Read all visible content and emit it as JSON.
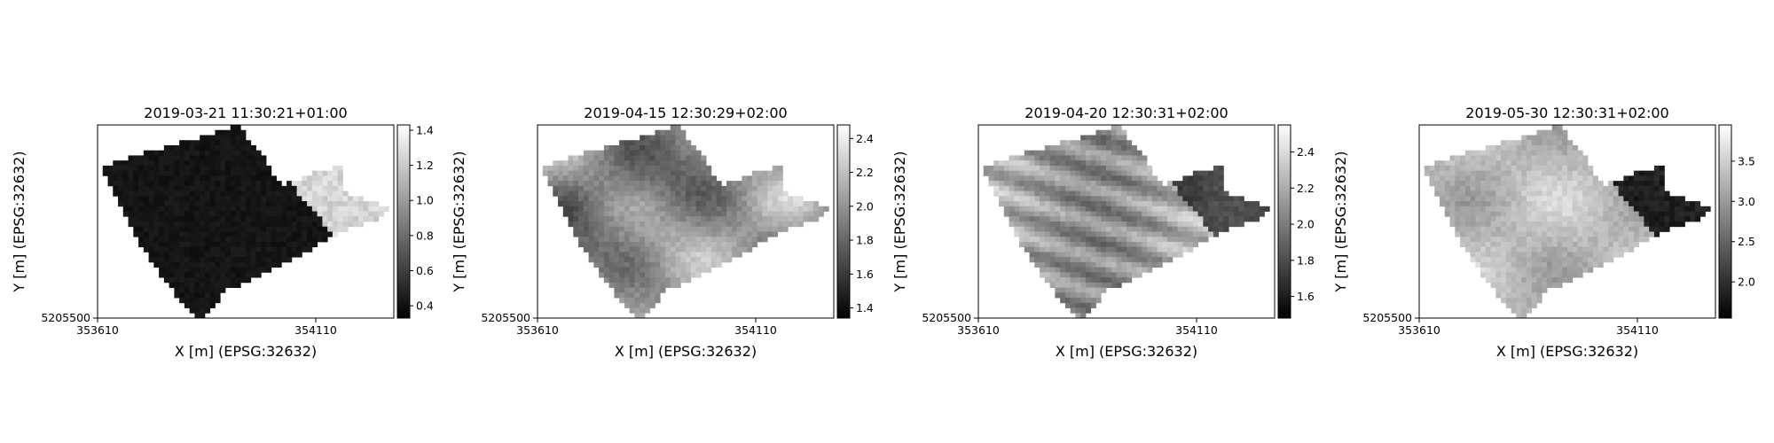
{
  "figure": {
    "panels": [
      {
        "title": "2019-03-21 11:30:21+01:00",
        "xlabel": "X [m] (EPSG:32632)",
        "ylabel": "Y [m] (EPSG:32632)",
        "xticks": [
          "353610",
          "354110"
        ],
        "yticks": [
          "5205500"
        ],
        "colorbar_ticks": [
          "0.4",
          "0.6",
          "0.8",
          "1.0",
          "1.2",
          "1.4"
        ]
      },
      {
        "title": "2019-04-15 12:30:29+02:00",
        "xlabel": "X [m] (EPSG:32632)",
        "ylabel": "Y [m] (EPSG:32632)",
        "xticks": [
          "353610",
          "354110"
        ],
        "yticks": [
          "5205500"
        ],
        "colorbar_ticks": [
          "1.4",
          "1.6",
          "1.8",
          "2.0",
          "2.2",
          "2.4"
        ]
      },
      {
        "title": "2019-04-20 12:30:31+02:00",
        "xlabel": "X [m] (EPSG:32632)",
        "ylabel": "Y [m] (EPSG:32632)",
        "xticks": [
          "353610",
          "354110"
        ],
        "yticks": [
          "5205500"
        ],
        "colorbar_ticks": [
          "1.6",
          "1.8",
          "2.0",
          "2.2",
          "2.4"
        ]
      },
      {
        "title": "2019-05-30 12:30:31+02:00",
        "xlabel": "X [m] (EPSG:32632)",
        "ylabel": "Y [m] (EPSG:32632)",
        "xticks": [
          "353610",
          "354110"
        ],
        "yticks": [
          "5205500"
        ],
        "colorbar_ticks": [
          "2.0",
          "2.5",
          "3.0",
          "3.5"
        ]
      }
    ]
  },
  "chart_data": [
    {
      "type": "heatmap",
      "title": "2019-03-21 11:30:21+01:00",
      "xlabel": "X [m] (EPSG:32632)",
      "ylabel": "Y [m] (EPSG:32632)",
      "colormap": "gray",
      "grid": false,
      "xlim": [
        353610,
        354290
      ],
      "ylim": [
        5205500,
        5205960
      ],
      "clim": [
        0.33,
        1.43
      ],
      "colorbar_ticks": [
        0.4,
        0.6,
        0.8,
        1.0,
        1.2,
        1.4
      ],
      "description_zones": [
        {
          "region": "west (left of 354080)",
          "value": 0.45
        },
        {
          "region": "east (right of 354080)",
          "value": 1.25
        }
      ]
    },
    {
      "type": "heatmap",
      "title": "2019-04-15 12:30:29+02:00",
      "xlabel": "X [m] (EPSG:32632)",
      "ylabel": "Y [m] (EPSG:32632)",
      "colormap": "gray",
      "grid": false,
      "xlim": [
        353610,
        354290
      ],
      "ylim": [
        5205500,
        5205960
      ],
      "clim": [
        1.34,
        2.48
      ],
      "colorbar_ticks": [
        1.4,
        1.6,
        1.8,
        2.0,
        2.2,
        2.4
      ],
      "description_zones": [
        {
          "region": "field (patchy)",
          "value": 2.0
        }
      ]
    },
    {
      "type": "heatmap",
      "title": "2019-04-20 12:30:31+02:00",
      "xlabel": "X [m] (EPSG:32632)",
      "ylabel": "Y [m] (EPSG:32632)",
      "colormap": "gray",
      "grid": false,
      "xlim": [
        353610,
        354290
      ],
      "ylim": [
        5205500,
        5205960
      ],
      "clim": [
        1.48,
        2.55
      ],
      "colorbar_ticks": [
        1.6,
        1.8,
        2.0,
        2.2,
        2.4
      ],
      "description_zones": [
        {
          "region": "west (striped)",
          "value": 2.1
        },
        {
          "region": "east",
          "value": 1.75
        }
      ]
    },
    {
      "type": "heatmap",
      "title": "2019-05-30 12:30:31+02:00",
      "xlabel": "X [m] (EPSG:32632)",
      "ylabel": "Y [m] (EPSG:32632)",
      "colormap": "gray",
      "grid": false,
      "xlim": [
        353610,
        354290
      ],
      "ylim": [
        5205500,
        5205960
      ],
      "clim": [
        1.55,
        3.95
      ],
      "colorbar_ticks": [
        2.0,
        2.5,
        3.0,
        3.5
      ],
      "description_zones": [
        {
          "region": "west",
          "value": 3.3
        },
        {
          "region": "east (right of 354080)",
          "value": 1.8
        }
      ]
    }
  ]
}
